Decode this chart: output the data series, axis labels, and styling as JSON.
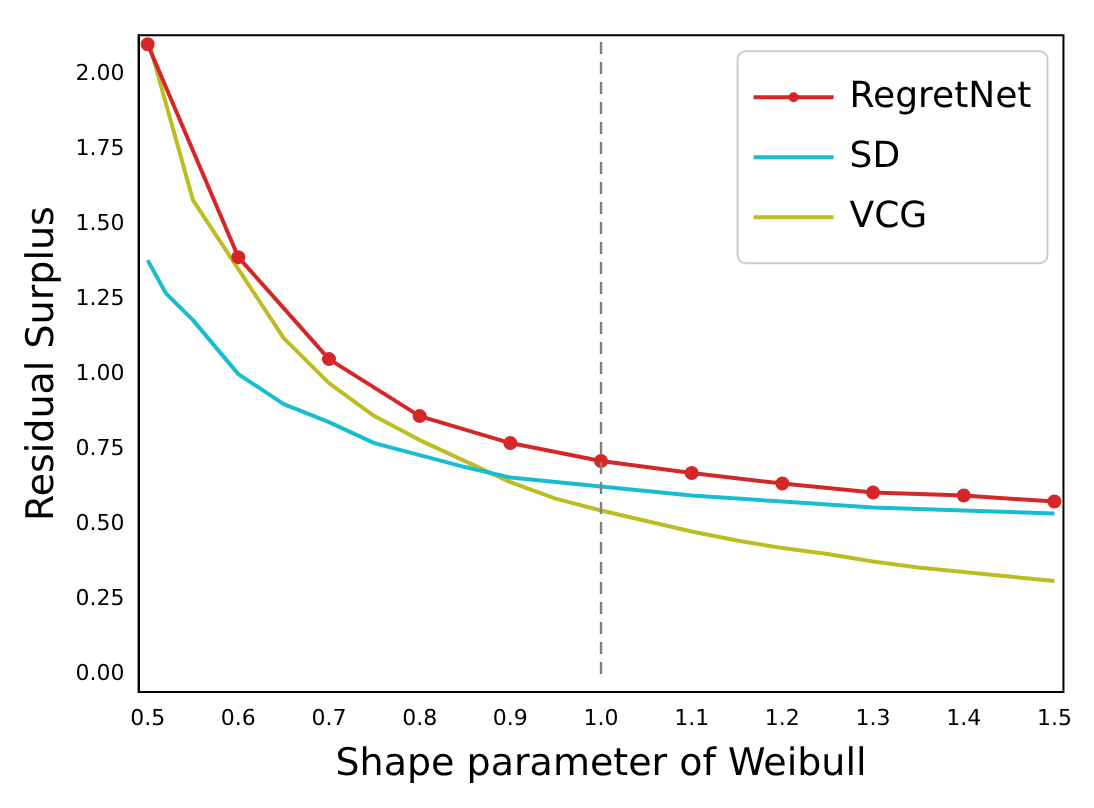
{
  "chart_data": {
    "type": "line",
    "xlabel": "Shape parameter of Weibull",
    "ylabel": "Residual Surplus",
    "xlim": [
      0.49,
      1.51
    ],
    "xticks": [
      {
        "value": 0.5,
        "label": "0.5"
      },
      0.6,
      0.7,
      0.8,
      0.9,
      {
        "value": 1,
        "label": "1.0"
      },
      1.1,
      1.2,
      1.3,
      1.4,
      {
        "value": 1.5,
        "label": "1.5"
      }
    ],
    "ylim": [
      -0.06,
      2.13
    ],
    "yticks": [
      {
        "value": 0,
        "label": "0.00"
      },
      {
        "value": 0.25,
        "label": "0.25"
      },
      {
        "value": 0.5,
        "label": "0.50"
      },
      {
        "value": 0.75,
        "label": "0.75"
      },
      {
        "value": 1,
        "label": "1.00"
      },
      {
        "value": 1.25,
        "label": "1.25"
      },
      {
        "value": 1.5,
        "label": "1.50"
      },
      {
        "value": 1.75,
        "label": "1.75"
      },
      {
        "value": 2,
        "label": "2.00"
      }
    ],
    "grid": false,
    "legend": "top right",
    "line_style": "solid",
    "ref_lines": [
      {
        "axis": "x",
        "value": 1,
        "color": "#808080",
        "line_style": "dashed"
      }
    ],
    "series": [
      {
        "name": "RegretNet",
        "color": "#d62728",
        "marker": "circle",
        "x": [
          0.5,
          0.6,
          0.7,
          0.8,
          0.9,
          1.0,
          1.1,
          1.2,
          1.3,
          1.4,
          1.5
        ],
        "values": [
          2.1,
          1.39,
          1.05,
          0.86,
          0.77,
          0.71,
          0.67,
          0.635,
          0.605,
          0.595,
          0.575
        ]
      },
      {
        "name": "SD",
        "color": "#17becf",
        "marker": "none",
        "x": [
          0.5,
          0.52,
          0.55,
          0.6,
          0.65,
          0.7,
          0.75,
          0.8,
          0.85,
          0.9,
          0.95,
          1.0,
          1.05,
          1.1,
          1.15,
          1.2,
          1.25,
          1.3,
          1.35,
          1.4,
          1.45,
          1.5
        ],
        "values": [
          1.38,
          1.27,
          1.18,
          1.0,
          0.9,
          0.84,
          0.77,
          0.73,
          0.69,
          0.655,
          0.64,
          0.625,
          0.61,
          0.595,
          0.585,
          0.575,
          0.565,
          0.555,
          0.55,
          0.545,
          0.54,
          0.535
        ]
      },
      {
        "name": "VCG",
        "color": "#bcbd22",
        "marker": "none",
        "x": [
          0.5,
          0.55,
          0.6,
          0.65,
          0.7,
          0.75,
          0.8,
          0.85,
          0.9,
          0.95,
          1.0,
          1.05,
          1.1,
          1.15,
          1.2,
          1.25,
          1.3,
          1.35,
          1.4,
          1.45,
          1.5
        ],
        "values": [
          2.12,
          1.58,
          1.35,
          1.12,
          0.97,
          0.86,
          0.78,
          0.71,
          0.64,
          0.585,
          0.545,
          0.51,
          0.475,
          0.445,
          0.42,
          0.4,
          0.375,
          0.355,
          0.34,
          0.325,
          0.31
        ]
      }
    ]
  }
}
